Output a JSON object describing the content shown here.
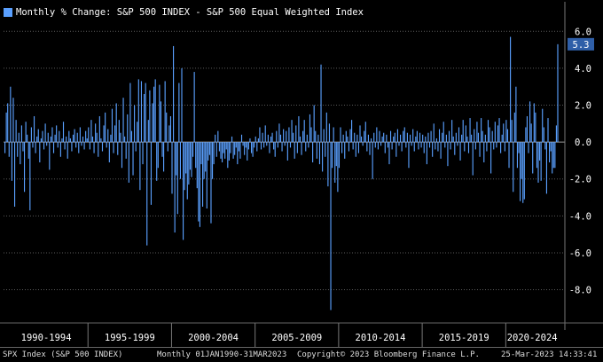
{
  "chart_data": {
    "type": "bar",
    "title": "Monthly % Change: S&P 500 INDEX - S&P 500 Equal Weighted Index",
    "series": [
      {
        "name": "Monthly % Change: S&P 500 INDEX - S&P 500 Equal Weighted Index",
        "color": "#5aa0ff"
      }
    ],
    "x_tick_labels": [
      "1990-1994",
      "1995-1999",
      "2000-2004",
      "2005-2009",
      "2010-2014",
      "2015-2019",
      "2020-2024"
    ],
    "y_tick_labels": [
      "6.0",
      "4.0",
      "2.0",
      "0.0",
      "-2.0",
      "-4.0",
      "-6.0",
      "-8.0"
    ],
    "y_ticks": [
      6,
      4,
      2,
      0,
      -2,
      -4,
      -6,
      -8
    ],
    "ylim": [
      -9.8,
      7.6
    ],
    "last_value_label": "5.3",
    "bars": [
      {
        "period": "1990-1994",
        "values": [
          -0.6,
          1.6,
          2.1,
          -0.8,
          3.0,
          -2.1,
          2.4,
          -3.5,
          1.2,
          -0.8,
          0.5,
          -1.2,
          0.9,
          -0.5,
          -2.7,
          1.1,
          0.4,
          -0.9,
          -3.7,
          0.8,
          -0.3,
          1.4,
          -0.6,
          0.3,
          0.7,
          -1.1,
          0.2,
          0.6,
          -0.4,
          1.0,
          -0.2,
          0.5,
          -1.5,
          0.3,
          0.8,
          -0.6,
          0.4,
          0.9,
          -0.3,
          0.6,
          -0.8,
          0.2,
          1.1,
          -0.4,
          0.3,
          -0.9,
          0.6,
          0.2,
          -0.5,
          0.4,
          0.7,
          -0.3,
          0.5,
          -0.6,
          0.8,
          -0.2,
          0.3,
          -0.4,
          0.6,
          0.2
        ]
      },
      {
        "period": "1995-1999",
        "values": [
          0.8,
          -0.4,
          1.2,
          0.3,
          -0.6,
          1.0,
          0.5,
          -0.8,
          1.4,
          0.2,
          -0.5,
          0.9,
          1.6,
          -0.3,
          0.7,
          -1.1,
          0.4,
          1.8,
          -0.6,
          0.9,
          2.1,
          -0.7,
          1.2,
          0.5,
          -1.4,
          2.4,
          0.3,
          -0.9,
          1.5,
          -2.2,
          3.2,
          0.6,
          -1.8,
          2.0,
          -0.5,
          1.1,
          3.4,
          -2.6,
          3.3,
          -1.2,
          2.6,
          3.2,
          -5.6,
          1.2,
          2.8,
          -3.4,
          2.1,
          3.0,
          3.4,
          -2.1,
          -1.4,
          3.1,
          2.2,
          -0.8,
          -1.6,
          3.3,
          1.6,
          -0.5,
          0.9,
          1.4
        ]
      },
      {
        "period": "2000-2004",
        "values": [
          -2.8,
          5.2,
          -4.9,
          -1.8,
          -3.9,
          3.2,
          -2.0,
          4.0,
          -5.3,
          -2.6,
          -1.7,
          -3.1,
          -2.3,
          -1.5,
          -1.9,
          -0.8,
          3.8,
          -1.4,
          -2.5,
          -4.3,
          -4.6,
          -1.2,
          -3.5,
          -2.0,
          -1.6,
          -3.6,
          -1.0,
          -0.7,
          -4.4,
          -2.0,
          -1.2,
          0.4,
          -0.8,
          0.6,
          -0.5,
          -0.9,
          -1.1,
          -0.6,
          -0.9,
          -0.4,
          -1.4,
          -1.0,
          -0.6,
          0.3,
          -0.9,
          -0.7,
          -0.3,
          -1.2,
          -0.5,
          -0.9,
          0.4,
          -0.2,
          -0.7,
          -0.3,
          -1.0,
          -0.4,
          0.2,
          -0.6,
          -0.8,
          -0.3
        ]
      },
      {
        "period": "2005-2009",
        "values": [
          0.3,
          -0.5,
          0.2,
          0.8,
          -0.4,
          0.5,
          -0.3,
          0.9,
          -0.2,
          0.4,
          -0.6,
          0.3,
          0.5,
          -0.4,
          -0.8,
          0.6,
          -0.3,
          1.0,
          0.4,
          -0.5,
          0.7,
          -0.2,
          0.6,
          -1.0,
          0.8,
          -0.3,
          1.2,
          0.5,
          -0.9,
          0.9,
          -0.6,
          1.4,
          0.3,
          -0.7,
          0.6,
          1.2,
          -0.5,
          0.4,
          -0.3,
          1.5,
          0.8,
          -1.1,
          2.0,
          0.6,
          -0.9,
          0.4,
          -1.2,
          4.2,
          -1.6,
          0.7,
          -0.8,
          1.6,
          -2.4,
          1.0,
          -9.1,
          -1.4,
          0.8,
          -2.2,
          -1.3,
          -2.7
        ]
      },
      {
        "period": "2010-2014",
        "values": [
          -1.4,
          0.8,
          -0.6,
          0.4,
          -0.9,
          0.6,
          0.3,
          -0.5,
          0.7,
          1.2,
          -0.4,
          0.5,
          -0.8,
          0.4,
          -0.6,
          0.9,
          0.3,
          -0.2,
          0.6,
          1.1,
          -0.5,
          0.4,
          -0.7,
          0.2,
          -2.0,
          0.5,
          -0.3,
          0.8,
          -0.4,
          0.6,
          -0.2,
          0.3,
          0.5,
          -0.6,
          0.4,
          -0.3,
          -1.2,
          0.6,
          -0.4,
          0.3,
          0.5,
          -0.8,
          0.7,
          -0.2,
          0.4,
          -0.5,
          0.6,
          0.8,
          -0.3,
          0.5,
          -1.4,
          0.4,
          -0.2,
          0.7,
          -0.5,
          0.3,
          0.6,
          -0.4,
          0.5,
          -0.3
        ]
      },
      {
        "period": "2015-2019",
        "values": [
          0.4,
          -0.6,
          0.3,
          -1.2,
          0.5,
          -0.3,
          0.6,
          -0.8,
          1.0,
          -0.4,
          0.2,
          -0.5,
          0.7,
          -0.9,
          0.5,
          1.1,
          -0.3,
          0.4,
          -1.3,
          0.6,
          -0.4,
          1.2,
          0.3,
          -0.7,
          0.5,
          -0.2,
          0.8,
          -1.0,
          0.4,
          1.2,
          -0.5,
          0.9,
          0.3,
          -0.6,
          1.3,
          0.4,
          -1.8,
          0.7,
          -0.4,
          1.1,
          0.5,
          -0.8,
          1.3,
          0.6,
          -1.1,
          0.4,
          -0.5,
          1.2,
          0.8,
          -1.7,
          0.6,
          -0.4,
          1.1,
          -0.3,
          0.9,
          1.3,
          -0.6,
          0.4,
          1.0,
          -0.5
        ]
      },
      {
        "period": "2020-2024",
        "values": [
          1.2,
          0.7,
          -1.4,
          5.7,
          1.2,
          -2.7,
          1.6,
          3.0,
          -1.4,
          -0.6,
          -3.2,
          -2.0,
          -3.3,
          -3.1,
          0.8,
          1.4,
          -0.6,
          2.2,
          1.0,
          -1.7,
          2.1,
          1.6,
          -1.4,
          -2.2,
          -1.0,
          -2.1,
          1.8,
          0.8,
          -0.4,
          -2.8,
          1.3,
          -1.1,
          -0.5,
          -1.7,
          -1.4,
          -1.4,
          0.9,
          5.3
        ]
      }
    ]
  },
  "footer": {
    "ticker": "SPX Index (S&P 500 INDEX)",
    "range": "Monthly 01JAN1990-31MAR2023",
    "copyright": "Copyright© 2023 Bloomberg Finance L.P.",
    "timestamp": "25-Mar-2023 14:33:41"
  },
  "colors": {
    "bar": "#5aa0ff",
    "grid": "#5a5a5a",
    "zero_line": "#9a9a9a",
    "value_tag": "#2f5fa8"
  }
}
